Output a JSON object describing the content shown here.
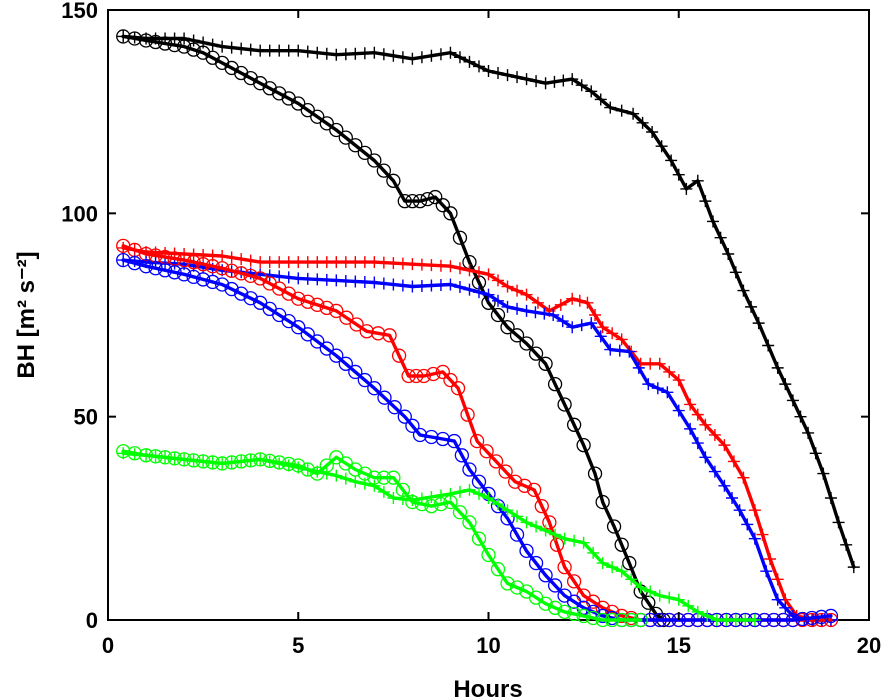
{
  "chart_data": {
    "type": "line",
    "title": "",
    "xlabel": "Hours",
    "ylabel": "BH [m² s⁻²]",
    "xlim": [
      0,
      20
    ],
    "ylim": [
      0,
      150
    ],
    "xticks": [
      0,
      5,
      10,
      15,
      20
    ],
    "yticks": [
      0,
      50,
      100,
      150
    ],
    "grid": false,
    "series": [
      {
        "color": "#000000",
        "marker": "plus",
        "points": [
          [
            0.4,
            143.5
          ],
          [
            1,
            143
          ],
          [
            2,
            143
          ],
          [
            3,
            141
          ],
          [
            4,
            140
          ],
          [
            5,
            140
          ],
          [
            6,
            139
          ],
          [
            7,
            139.5
          ],
          [
            8,
            138
          ],
          [
            9,
            139.5
          ],
          [
            10,
            135
          ],
          [
            11,
            133
          ],
          [
            11.5,
            132
          ],
          [
            12.2,
            133
          ],
          [
            12.7,
            130
          ],
          [
            13.2,
            126
          ],
          [
            13.8,
            124.5
          ],
          [
            14.3,
            120
          ],
          [
            14.8,
            113
          ],
          [
            15.2,
            106
          ],
          [
            15.5,
            108
          ],
          [
            15.9,
            98
          ],
          [
            16.3,
            90
          ],
          [
            16.7,
            81
          ],
          [
            17.1,
            73
          ],
          [
            17.6,
            62
          ],
          [
            18,
            54
          ],
          [
            18.4,
            46
          ],
          [
            18.8,
            36
          ],
          [
            19.2,
            24
          ],
          [
            19.6,
            13
          ]
        ]
      },
      {
        "color": "#000000",
        "marker": "circle",
        "points": [
          [
            0.4,
            143.5
          ],
          [
            1,
            142.5
          ],
          [
            2,
            141
          ],
          [
            2.5,
            139.5
          ],
          [
            3,
            137
          ],
          [
            4,
            132
          ],
          [
            5,
            127
          ],
          [
            6,
            120.5
          ],
          [
            7,
            113
          ],
          [
            7.5,
            108
          ],
          [
            7.8,
            103
          ],
          [
            8.2,
            103
          ],
          [
            8.6,
            104
          ],
          [
            9,
            100
          ],
          [
            9.5,
            88
          ],
          [
            10,
            78
          ],
          [
            10.5,
            72
          ],
          [
            11,
            68
          ],
          [
            11.5,
            63
          ],
          [
            12,
            53
          ],
          [
            12.5,
            43
          ],
          [
            12.8,
            36
          ],
          [
            13,
            29
          ],
          [
            13.3,
            23
          ],
          [
            13.7,
            14
          ],
          [
            14,
            7
          ],
          [
            14.4,
            1.5
          ],
          [
            14.6,
            0
          ]
        ]
      },
      {
        "color": "#ff0000",
        "marker": "plus",
        "points": [
          [
            0.4,
            91.5
          ],
          [
            1,
            90.5
          ],
          [
            2,
            90
          ],
          [
            3,
            89.5
          ],
          [
            4,
            88
          ],
          [
            5,
            88
          ],
          [
            6,
            88
          ],
          [
            7,
            88
          ],
          [
            8,
            87.5
          ],
          [
            9,
            87
          ],
          [
            10,
            85
          ],
          [
            10.5,
            82
          ],
          [
            11,
            80
          ],
          [
            11.6,
            76
          ],
          [
            12.2,
            79
          ],
          [
            12.6,
            78
          ],
          [
            13,
            72
          ],
          [
            13.5,
            69
          ],
          [
            14,
            63
          ],
          [
            14.5,
            63
          ],
          [
            15,
            59
          ],
          [
            15.3,
            53
          ],
          [
            15.7,
            48
          ],
          [
            16.2,
            43
          ],
          [
            16.7,
            35
          ],
          [
            17,
            27
          ],
          [
            17.4,
            15
          ],
          [
            17.8,
            5
          ],
          [
            18.1,
            1
          ],
          [
            18.5,
            0
          ],
          [
            19,
            0
          ]
        ]
      },
      {
        "color": "#0000ff",
        "marker": "plus",
        "points": [
          [
            0.4,
            88.5
          ],
          [
            1,
            88
          ],
          [
            2,
            87.5
          ],
          [
            3,
            86
          ],
          [
            4,
            85
          ],
          [
            5,
            84
          ],
          [
            6,
            83.5
          ],
          [
            7,
            83
          ],
          [
            8,
            82
          ],
          [
            9,
            82.5
          ],
          [
            10,
            80
          ],
          [
            10.5,
            77
          ],
          [
            11,
            76
          ],
          [
            11.7,
            75
          ],
          [
            12.2,
            72
          ],
          [
            12.7,
            73
          ],
          [
            13.2,
            66.5
          ],
          [
            13.7,
            66
          ],
          [
            14.2,
            58
          ],
          [
            14.7,
            56
          ],
          [
            15.3,
            47
          ],
          [
            15.7,
            40
          ],
          [
            16.2,
            33
          ],
          [
            16.6,
            27
          ],
          [
            17,
            20
          ],
          [
            17.3,
            12
          ],
          [
            17.6,
            5
          ],
          [
            18,
            1
          ],
          [
            18.3,
            0
          ],
          [
            19,
            0
          ]
        ]
      },
      {
        "color": "#ff0000",
        "marker": "circle",
        "points": [
          [
            0.4,
            92
          ],
          [
            1,
            90
          ],
          [
            2,
            88.5
          ],
          [
            3,
            86.5
          ],
          [
            4,
            84
          ],
          [
            5,
            79
          ],
          [
            6,
            76
          ],
          [
            6.8,
            71
          ],
          [
            7.4,
            70
          ],
          [
            7.9,
            60
          ],
          [
            8.3,
            60
          ],
          [
            8.8,
            61
          ],
          [
            9.2,
            57
          ],
          [
            9.7,
            44
          ],
          [
            10.2,
            39
          ],
          [
            10.7,
            34
          ],
          [
            11.2,
            32
          ],
          [
            11.6,
            24
          ],
          [
            12,
            13
          ],
          [
            12.5,
            6
          ],
          [
            13,
            3
          ],
          [
            13.5,
            1
          ],
          [
            14,
            0
          ],
          [
            15,
            0
          ],
          [
            16,
            0
          ],
          [
            17,
            0
          ],
          [
            18,
            0
          ],
          [
            19,
            0
          ]
        ]
      },
      {
        "color": "#0000ff",
        "marker": "circle",
        "points": [
          [
            0.4,
            88.5
          ],
          [
            1,
            87
          ],
          [
            2,
            85
          ],
          [
            3,
            82.5
          ],
          [
            4,
            78
          ],
          [
            5,
            72
          ],
          [
            6,
            65
          ],
          [
            7,
            57
          ],
          [
            7.8,
            50
          ],
          [
            8.2,
            45.5
          ],
          [
            8.8,
            44.5
          ],
          [
            9.1,
            44
          ],
          [
            9.5,
            37
          ],
          [
            10,
            31
          ],
          [
            10.5,
            25
          ],
          [
            11,
            17
          ],
          [
            11.5,
            11
          ],
          [
            12,
            6
          ],
          [
            12.5,
            3
          ],
          [
            13,
            1
          ],
          [
            13.5,
            0
          ],
          [
            14,
            0
          ],
          [
            15,
            0
          ],
          [
            16,
            0
          ],
          [
            17,
            0
          ],
          [
            18,
            0
          ],
          [
            19,
            1
          ]
        ]
      },
      {
        "color": "#00ff00",
        "marker": "plus",
        "points": [
          [
            0.4,
            41
          ],
          [
            1,
            40.5
          ],
          [
            2,
            39.5
          ],
          [
            3,
            38.5
          ],
          [
            4,
            39.5
          ],
          [
            5,
            37.5
          ],
          [
            6,
            35.5
          ],
          [
            6.5,
            34
          ],
          [
            7,
            33
          ],
          [
            7.5,
            30
          ],
          [
            8,
            29.5
          ],
          [
            9,
            31
          ],
          [
            9.5,
            32
          ],
          [
            10,
            30
          ],
          [
            10.5,
            27
          ],
          [
            11,
            24
          ],
          [
            11.5,
            22
          ],
          [
            12,
            20
          ],
          [
            12.5,
            19
          ],
          [
            13,
            14
          ],
          [
            13.5,
            12
          ],
          [
            14,
            8
          ],
          [
            14.5,
            6
          ],
          [
            15,
            5
          ],
          [
            15.5,
            2
          ],
          [
            16,
            0
          ],
          [
            16.5,
            0
          ],
          [
            17,
            0
          ]
        ]
      },
      {
        "color": "#00ff00",
        "marker": "circle",
        "points": [
          [
            0.4,
            41.5
          ],
          [
            1,
            40.5
          ],
          [
            2,
            39.5
          ],
          [
            3,
            38.5
          ],
          [
            4,
            39.5
          ],
          [
            5,
            38
          ],
          [
            5.5,
            36
          ],
          [
            6,
            40
          ],
          [
            6.5,
            37
          ],
          [
            7,
            35
          ],
          [
            7.5,
            35
          ],
          [
            8,
            29
          ],
          [
            8.5,
            28
          ],
          [
            9,
            29
          ],
          [
            9.5,
            24
          ],
          [
            10,
            16
          ],
          [
            10.5,
            9
          ],
          [
            11,
            7
          ],
          [
            11.5,
            4
          ],
          [
            12,
            2
          ],
          [
            12.5,
            1
          ],
          [
            13,
            0
          ],
          [
            14,
            0
          ]
        ]
      }
    ]
  }
}
